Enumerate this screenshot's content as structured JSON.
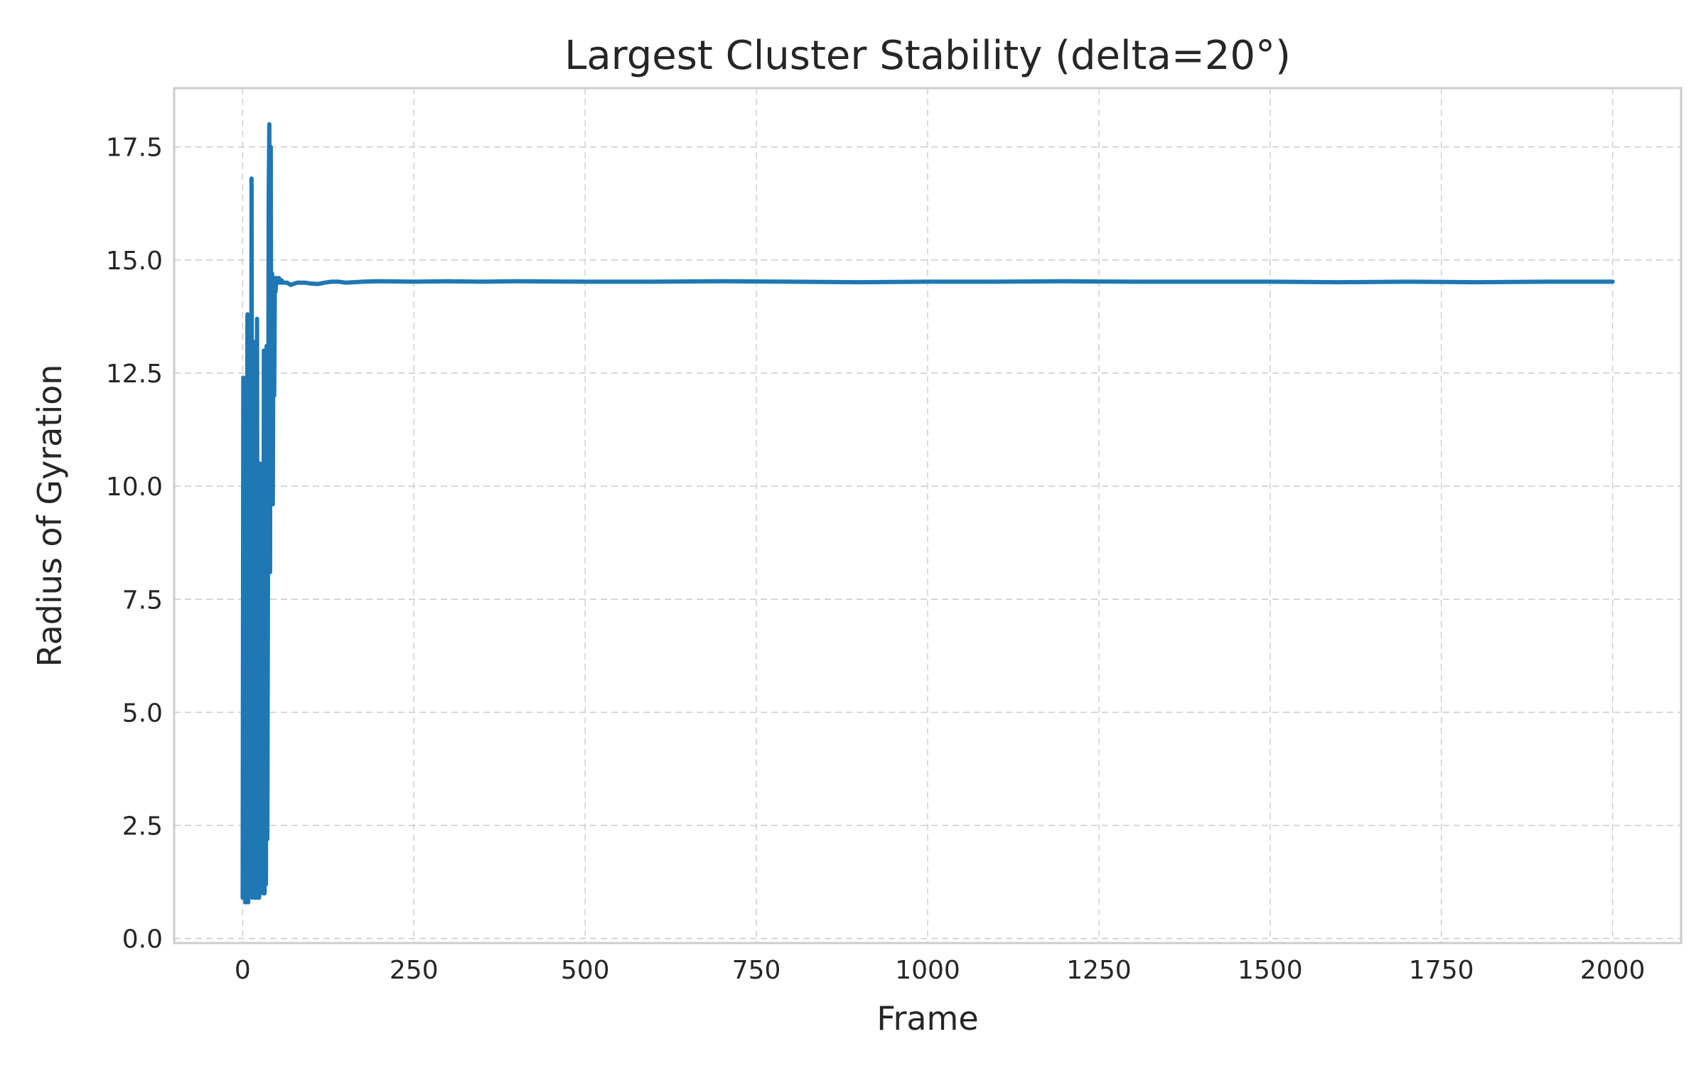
{
  "chart_data": {
    "type": "line",
    "title": "Largest Cluster Stability (delta=20°)",
    "xlabel": "Frame",
    "ylabel": "Radius of Gyration",
    "xlim": [
      -100,
      2100
    ],
    "ylim": [
      -0.1,
      18.8
    ],
    "xticks": [
      0,
      250,
      500,
      750,
      1000,
      1250,
      1500,
      1750,
      2000
    ],
    "xtick_labels": [
      "0",
      "250",
      "500",
      "750",
      "1000",
      "1250",
      "1500",
      "1750",
      "2000"
    ],
    "yticks": [
      0.0,
      2.5,
      5.0,
      7.5,
      10.0,
      12.5,
      15.0,
      17.5
    ],
    "ytick_labels": [
      "0.0",
      "2.5",
      "5.0",
      "7.5",
      "10.0",
      "12.5",
      "15.0",
      "17.5"
    ],
    "grid": true,
    "legend": "none",
    "colors": {
      "series": "#1f77b4",
      "grid": "#cccccc",
      "frame": "#cccccc",
      "text": "#262626"
    },
    "series": [
      {
        "x": [
          0,
          1,
          2,
          3,
          4,
          5,
          6,
          7,
          8,
          9,
          10,
          11,
          12,
          13,
          14,
          15,
          16,
          17,
          18,
          19,
          20,
          21,
          22,
          23,
          24,
          25,
          26,
          27,
          28,
          29,
          30,
          31,
          32,
          33,
          34,
          35,
          36,
          37,
          38,
          39,
          40,
          41,
          42,
          43,
          44,
          45,
          46,
          47,
          48,
          49,
          50,
          51,
          52,
          53,
          54,
          55,
          56,
          57,
          58,
          60,
          65,
          70,
          80,
          90,
          100,
          110,
          120,
          130,
          140,
          150,
          175,
          200,
          250,
          300,
          350,
          400,
          500,
          600,
          700,
          800,
          900,
          1000,
          1100,
          1200,
          1300,
          1400,
          1500,
          1600,
          1700,
          1800,
          1900,
          2000
        ],
        "y": [
          0.9,
          12.4,
          0.9,
          11.2,
          0.8,
          9.5,
          1.0,
          13.8,
          0.8,
          5.5,
          1.0,
          13.7,
          1.2,
          16.8,
          0.9,
          9.0,
          1.0,
          6.0,
          0.9,
          13.2,
          0.9,
          13.7,
          1.0,
          1.2,
          0.9,
          10.5,
          1.0,
          2.0,
          1.1,
          8.5,
          1.0,
          13.0,
          1.0,
          4.5,
          1.2,
          13.1,
          2.2,
          8.2,
          16.4,
          18.0,
          8.1,
          17.5,
          9.9,
          14.7,
          9.6,
          14.5,
          12.0,
          14.6,
          14.3,
          14.6,
          14.5,
          14.55,
          14.5,
          14.6,
          14.5,
          14.55,
          14.5,
          14.55,
          14.5,
          14.5,
          14.5,
          14.45,
          14.5,
          14.5,
          14.48,
          14.47,
          14.5,
          14.52,
          14.52,
          14.5,
          14.52,
          14.53,
          14.52,
          14.53,
          14.52,
          14.53,
          14.52,
          14.52,
          14.53,
          14.52,
          14.51,
          14.52,
          14.52,
          14.53,
          14.52,
          14.52,
          14.52,
          14.51,
          14.52,
          14.51,
          14.52,
          14.52
        ]
      }
    ]
  }
}
